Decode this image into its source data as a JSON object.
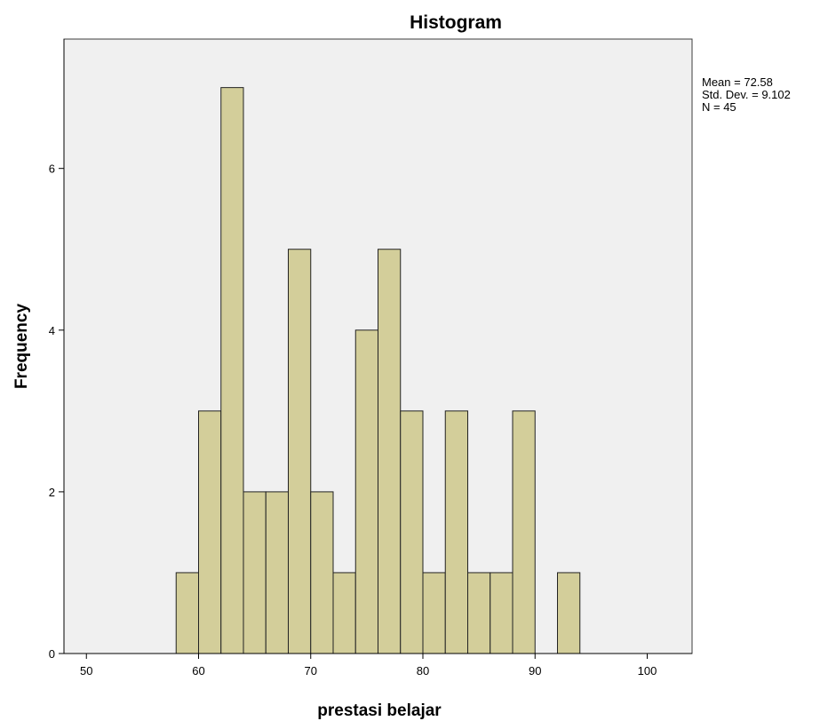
{
  "chart_data": {
    "type": "bar",
    "title": "Histogram",
    "xlabel": "prestasi belajar",
    "ylabel": "Frequency",
    "xlim": [
      48,
      104
    ],
    "ylim": [
      0,
      7.6
    ],
    "bin_width": 2,
    "bins": [
      {
        "start": 58,
        "end": 60,
        "count": 1
      },
      {
        "start": 60,
        "end": 62,
        "count": 3
      },
      {
        "start": 62,
        "end": 64,
        "count": 7
      },
      {
        "start": 64,
        "end": 66,
        "count": 2
      },
      {
        "start": 66,
        "end": 68,
        "count": 2
      },
      {
        "start": 68,
        "end": 70,
        "count": 5
      },
      {
        "start": 70,
        "end": 72,
        "count": 2
      },
      {
        "start": 72,
        "end": 74,
        "count": 1
      },
      {
        "start": 74,
        "end": 76,
        "count": 4
      },
      {
        "start": 76,
        "end": 78,
        "count": 5
      },
      {
        "start": 78,
        "end": 80,
        "count": 3
      },
      {
        "start": 80,
        "end": 82,
        "count": 1
      },
      {
        "start": 82,
        "end": 84,
        "count": 3
      },
      {
        "start": 84,
        "end": 86,
        "count": 1
      },
      {
        "start": 86,
        "end": 88,
        "count": 1
      },
      {
        "start": 88,
        "end": 90,
        "count": 3
      },
      {
        "start": 92,
        "end": 94,
        "count": 1
      }
    ],
    "x_ticks": [
      50,
      60,
      70,
      80,
      90,
      100
    ],
    "y_ticks": [
      0,
      2,
      4,
      6
    ],
    "stats": [
      "Mean = 72.58",
      "Std. Dev. = 9.102",
      "N = 45"
    ],
    "bar_color": "#d3ce9a",
    "background_color": "#f0f0f0",
    "grid": false
  }
}
